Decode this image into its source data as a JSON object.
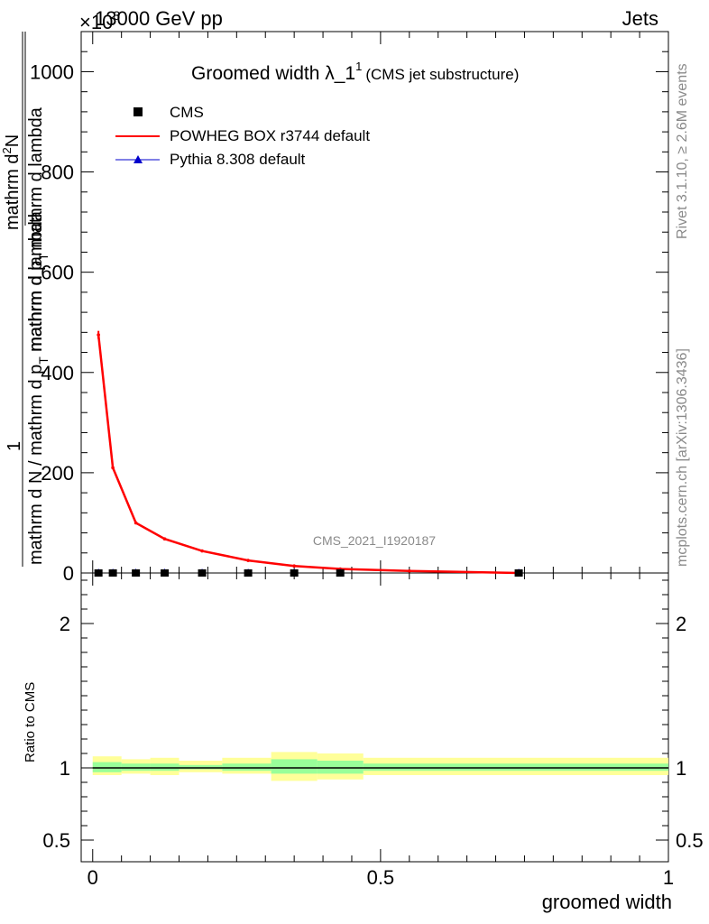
{
  "header": {
    "multiplier": "×10",
    "multiplier_exp": "3",
    "energy": "13000 GeV pp",
    "process": "Jets"
  },
  "side": {
    "rivet": "Rivet 3.1.10, ≥ 2.6M events",
    "mcplots": "mcplots.cern.ch [arXiv:1306.3436]"
  },
  "chart_data": [
    {
      "type": "line",
      "title_main": "Groomed width",
      "title_lambda": "λ_1",
      "title_sup": "1",
      "title_note": "(CMS jet substructure)",
      "analysis_label": "CMS_2021_I1920187",
      "ylabel_line1": "1",
      "ylabel_line2": "mathrm d N / mathrm d p",
      "ylabel_line2_sub": "T",
      "ylabel_line2_tail": " mathrm d lambda",
      "ylabel_top": "mathrm d",
      "ylabel_top_sup": "2",
      "ylabel_top_tail": "N",
      "ylabel_den": "mathrm d p",
      "ylabel_den_sub": "T",
      "ylabel_den_tail": " mathrm d lambda",
      "ylim": [
        0,
        1080
      ],
      "yticks": [
        0,
        200,
        400,
        600,
        800,
        1000
      ],
      "xlim": [
        -0.02,
        1.0
      ],
      "legend": {
        "cms": "CMS",
        "powheg": "POWHEG BOX r3744 default",
        "pythia": "Pythia 8.308 default"
      },
      "series": [
        {
          "name": "CMS",
          "color": "#000000",
          "x": [
            0.01,
            0.035,
            0.075,
            0.125,
            0.19,
            0.27,
            0.35,
            0.43,
            0.74
          ],
          "y": [
            0,
            0,
            0,
            0,
            0,
            0,
            0,
            0,
            0
          ]
        },
        {
          "name": "POWHEG BOX r3744 default",
          "color": "#ff0000",
          "x": [
            0.01,
            0.035,
            0.075,
            0.125,
            0.19,
            0.27,
            0.35,
            0.43,
            0.55,
            0.74
          ],
          "y": [
            475,
            210,
            100,
            68,
            44,
            25,
            14,
            8,
            4,
            0
          ]
        },
        {
          "name": "Pythia 8.308 default",
          "color": "#0000cc",
          "x": [
            0.01,
            0.035,
            0.075,
            0.125,
            0.19,
            0.27,
            0.35,
            0.43,
            0.74
          ],
          "y": [
            0,
            0,
            0,
            0,
            0,
            0,
            0,
            0,
            0
          ]
        }
      ]
    },
    {
      "type": "area",
      "ylabel": "Ratio to CMS",
      "xlabel": "groomed width",
      "ylim": [
        0.35,
        2.35
      ],
      "yticks": [
        0.5,
        1,
        2
      ],
      "xticks": [
        0,
        0.5,
        1
      ],
      "bands": {
        "yellow_color": "#ffff99",
        "green_color": "#99ff99",
        "bins": [
          {
            "xlo": 0.0,
            "xhi": 0.05,
            "y_lo": 0.95,
            "y_hi": 1.08,
            "g_lo": 0.97,
            "g_hi": 1.04
          },
          {
            "xlo": 0.05,
            "xhi": 0.1,
            "y_lo": 0.96,
            "y_hi": 1.06,
            "g_lo": 0.98,
            "g_hi": 1.03
          },
          {
            "xlo": 0.1,
            "xhi": 0.15,
            "y_lo": 0.95,
            "y_hi": 1.07,
            "g_lo": 0.98,
            "g_hi": 1.03
          },
          {
            "xlo": 0.15,
            "xhi": 0.225,
            "y_lo": 0.97,
            "y_hi": 1.05,
            "g_lo": 0.99,
            "g_hi": 1.02
          },
          {
            "xlo": 0.225,
            "xhi": 0.31,
            "y_lo": 0.96,
            "y_hi": 1.07,
            "g_lo": 0.98,
            "g_hi": 1.03
          },
          {
            "xlo": 0.31,
            "xhi": 0.39,
            "y_lo": 0.91,
            "y_hi": 1.11,
            "g_lo": 0.96,
            "g_hi": 1.06
          },
          {
            "xlo": 0.39,
            "xhi": 0.47,
            "y_lo": 0.92,
            "y_hi": 1.1,
            "g_lo": 0.96,
            "g_hi": 1.05
          },
          {
            "xlo": 0.47,
            "xhi": 1.0,
            "y_lo": 0.95,
            "y_hi": 1.07,
            "g_lo": 0.98,
            "g_hi": 1.03
          }
        ]
      }
    }
  ]
}
